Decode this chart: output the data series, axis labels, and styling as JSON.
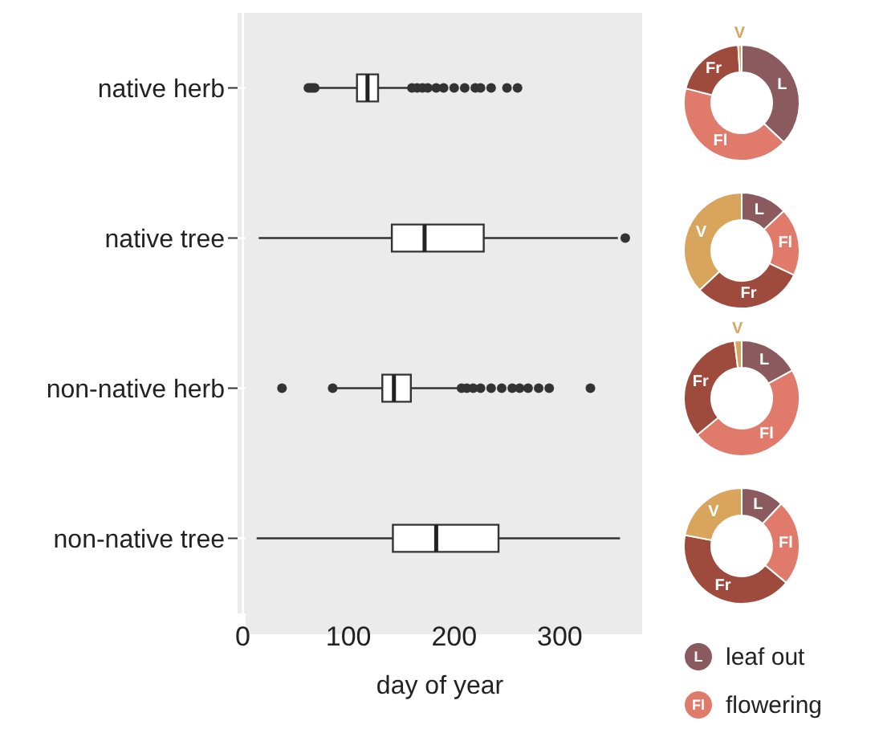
{
  "chart_data": [
    {
      "type": "box",
      "orientation": "horizontal",
      "xlabel": "day of year",
      "categories": [
        "native herb",
        "native tree",
        "non-native herb",
        "non-native tree"
      ],
      "xlim": [
        -5,
        378
      ],
      "xticks": [
        0,
        100,
        200,
        300
      ],
      "grid": true,
      "boxes": [
        {
          "low": 70,
          "q1": 108,
          "median": 118,
          "q3": 128,
          "high": 157,
          "outliers": [
            62,
            64,
            66,
            68,
            160,
            165,
            170,
            175,
            183,
            190,
            200,
            210,
            220,
            225,
            235,
            250,
            260
          ]
        },
        {
          "low": 15,
          "q1": 141,
          "median": 172,
          "q3": 228,
          "high": 355,
          "outliers": [
            362
          ]
        },
        {
          "low": 88,
          "q1": 132,
          "median": 143,
          "q3": 159,
          "high": 203,
          "outliers": [
            37,
            85,
            207,
            212,
            218,
            225,
            235,
            245,
            255,
            262,
            270,
            280,
            290,
            329
          ]
        },
        {
          "low": 13,
          "q1": 142,
          "median": 183,
          "q3": 242,
          "high": 357
        }
      ]
    },
    {
      "type": "donut",
      "categories": [
        "L",
        "Fl",
        "Fr",
        "V"
      ],
      "values": [
        37,
        42,
        20,
        1
      ],
      "colors": [
        "#8b5a5e",
        "#e07a6a",
        "#9e4b3e",
        "#d9a55c"
      ]
    },
    {
      "type": "donut",
      "categories": [
        "L",
        "Fl",
        "Fr",
        "V"
      ],
      "values": [
        13,
        19,
        31,
        37
      ],
      "colors": [
        "#8b5a5e",
        "#e07a6a",
        "#9e4b3e",
        "#d9a55c"
      ]
    },
    {
      "type": "donut",
      "categories": [
        "L",
        "Fl",
        "Fr",
        "V"
      ],
      "values": [
        17,
        47,
        34,
        2
      ],
      "colors": [
        "#8b5a5e",
        "#e07a6a",
        "#9e4b3e",
        "#d9a55c"
      ]
    },
    {
      "type": "donut",
      "categories": [
        "L",
        "Fl",
        "Fr",
        "V"
      ],
      "values": [
        12,
        24,
        42,
        22
      ],
      "colors": [
        "#8b5a5e",
        "#e07a6a",
        "#9e4b3e",
        "#d9a55c"
      ],
      "annotations": [
        "leaf out",
        "flowering"
      ]
    }
  ]
}
